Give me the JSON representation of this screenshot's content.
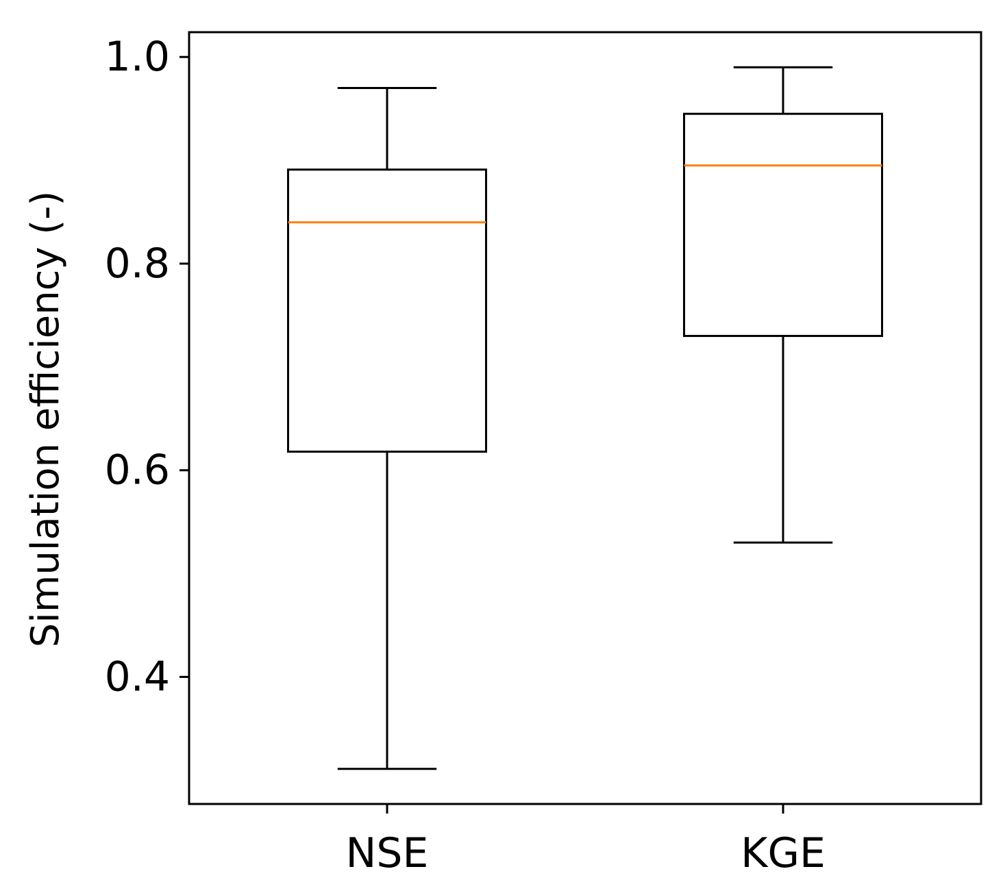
{
  "chart_data": {
    "type": "box",
    "title": "",
    "xlabel": "",
    "ylabel": "Simulation efficiency (-)",
    "ylim": [
      0.277,
      1.024
    ],
    "yticks": [
      {
        "value": 0.4,
        "label": "0.4"
      },
      {
        "value": 0.6,
        "label": "0.6"
      },
      {
        "value": 0.8,
        "label": "0.8"
      },
      {
        "value": 1.0,
        "label": "1.0"
      }
    ],
    "categories": [
      "NSE",
      "KGE"
    ],
    "boxes": [
      {
        "label": "NSE",
        "whisker_low": 0.311,
        "q1": 0.618,
        "median": 0.84,
        "q3": 0.891,
        "whisker_high": 0.97
      },
      {
        "label": "KGE",
        "whisker_low": 0.53,
        "q1": 0.73,
        "median": 0.895,
        "q3": 0.945,
        "whisker_high": 0.99
      }
    ],
    "grid": false,
    "colors": {
      "box": "#000000",
      "median": "#ff7f0e"
    }
  }
}
